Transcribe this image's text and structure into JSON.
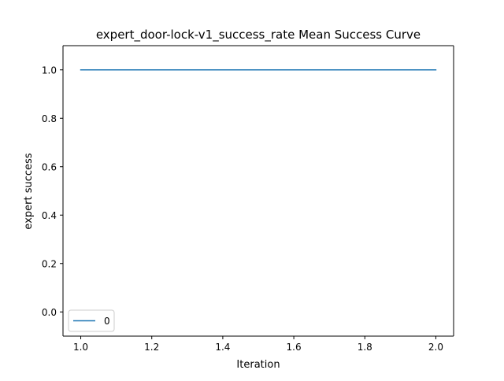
{
  "chart_data": {
    "type": "line",
    "title": "expert_door-lock-v1_success_rate Mean Success Curve",
    "xlabel": "Iteration",
    "ylabel": "expert success",
    "xlim": [
      0.95,
      2.05
    ],
    "ylim": [
      -0.1,
      1.1
    ],
    "x_ticks": [
      1.0,
      1.2,
      1.4,
      1.6,
      1.8,
      2.0
    ],
    "x_tick_labels": [
      "1.0",
      "1.2",
      "1.4",
      "1.6",
      "1.8",
      "2.0"
    ],
    "y_ticks": [
      0.0,
      0.2,
      0.4,
      0.6,
      0.8,
      1.0
    ],
    "y_tick_labels": [
      "0.0",
      "0.2",
      "0.4",
      "0.6",
      "0.8",
      "1.0"
    ],
    "grid": false,
    "legend": {
      "position": "lower-left",
      "entries": [
        "0"
      ]
    },
    "series": [
      {
        "name": "0",
        "color": "#1f77b4",
        "x": [
          1.0,
          2.0
        ],
        "y": [
          1.0,
          1.0
        ]
      }
    ]
  }
}
